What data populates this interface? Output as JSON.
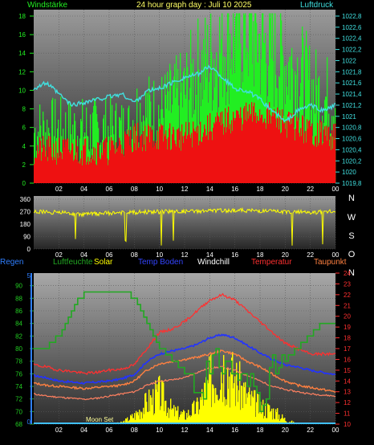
{
  "panel1": {
    "title": "24 hour graph day : Juli 10 2025",
    "left_label": "Windstärke",
    "right_label": "Luftdruck"
  },
  "panel3": {
    "legend": [
      "Regen",
      "Luftfeuchte",
      "Solar",
      "Temp Boden",
      "Windchill",
      "Temperatur",
      "Taupunkt"
    ],
    "moon_label": "Moon Set"
  },
  "colors": {
    "regen": "#2f7fff",
    "luftfeuchte": "#22a822",
    "solar": "#ffff00",
    "temp_boden": "#2233ff",
    "windchill": "#ffffff",
    "temperatur": "#ff3030",
    "taupunkt": "#ff8040",
    "luftdruck": "#40e0e0",
    "wind_gust": "#22ee22",
    "wind_avg": "#ee1111",
    "wind_dir": "#ffff00"
  },
  "chart_data": [
    {
      "type": "line",
      "title": "24 hour graph day : Juli 10 2025",
      "x_ticks": [
        "02",
        "04",
        "06",
        "08",
        "10",
        "12",
        "14",
        "16",
        "18",
        "20",
        "22",
        "00"
      ],
      "left_axis": {
        "label": "Windstärke",
        "ticks": [
          "0",
          "2",
          "4",
          "6",
          "8",
          "10",
          "12",
          "14",
          "16",
          "18"
        ],
        "range": [
          0,
          18
        ]
      },
      "right_axis": {
        "label": "Luftdruck",
        "ticks": [
          "1019,8",
          "1020",
          "1020,2",
          "1020,4",
          "1020,6",
          "1020,8",
          "1021",
          "1021,2",
          "1021,4",
          "1021,6",
          "1021,8",
          "1022",
          "1022,2",
          "1022,4",
          "1022,6",
          "1022,8"
        ],
        "range": [
          1019.8,
          1022.8
        ]
      },
      "series": [
        {
          "key": "gust",
          "hours": [
            0,
            2,
            4,
            6,
            7.5,
            8,
            10,
            11.5,
            12,
            12.5,
            13,
            14,
            15,
            16,
            17,
            18,
            19,
            20,
            21,
            22,
            23,
            24
          ],
          "values": [
            5.5,
            5.5,
            5.5,
            5.5,
            5.5,
            7.5,
            7.5,
            9,
            9.5,
            11,
            12,
            13,
            15,
            16,
            17,
            15,
            14,
            13,
            12,
            10,
            9,
            9
          ]
        },
        {
          "key": "avg",
          "hours": [
            0,
            2,
            4,
            6,
            8,
            10,
            12,
            13,
            14,
            16,
            18,
            20,
            22,
            24
          ],
          "values": [
            3.5,
            3.5,
            3.5,
            3.5,
            5,
            5,
            5,
            5.5,
            6,
            7,
            7.5,
            6.5,
            5.5,
            5
          ]
        },
        {
          "key": "pressure",
          "hours": [
            0,
            1,
            2,
            3,
            4,
            5,
            6,
            7,
            8,
            9,
            10,
            11,
            12,
            13,
            14,
            15,
            16,
            17,
            18,
            19,
            20,
            21,
            22,
            23,
            24
          ],
          "values": [
            1021.5,
            1021.6,
            1021.4,
            1021.2,
            1021.25,
            1021.3,
            1021.35,
            1021.4,
            1021.25,
            1021.45,
            1021.5,
            1021.6,
            1021.7,
            1021.75,
            1021.9,
            1021.7,
            1021.5,
            1021.45,
            1021.3,
            1021.1,
            1020.9,
            1021.1,
            1021.2,
            1021.1,
            1021.2
          ]
        }
      ]
    },
    {
      "type": "line",
      "x_ticks": [
        "02",
        "04",
        "06",
        "08",
        "10",
        "12",
        "14",
        "16",
        "18",
        "20",
        "22",
        "00"
      ],
      "left_axis": {
        "ticks": [
          "0",
          "90",
          "180",
          "270",
          "360"
        ],
        "range": [
          0,
          360
        ]
      },
      "right_labels": [
        "N",
        "W",
        "S",
        "O",
        "N"
      ],
      "series": [
        {
          "key": "direction",
          "hours": [
            0,
            2,
            4,
            6,
            8,
            10,
            12,
            14,
            16,
            18,
            20,
            22,
            24
          ],
          "values": [
            270,
            265,
            250,
            260,
            265,
            270,
            270,
            275,
            280,
            275,
            270,
            265,
            270
          ]
        }
      ]
    },
    {
      "type": "line",
      "x_ticks": [
        "02",
        "04",
        "06",
        "08",
        "10",
        "12",
        "14",
        "16",
        "18",
        "20",
        "22",
        "00"
      ],
      "left_axis": {
        "ticks": [
          "68",
          "70",
          "72",
          "74",
          "76",
          "78",
          "80",
          "82",
          "84",
          "86",
          "88",
          "90"
        ],
        "range": [
          68,
          92
        ]
      },
      "right_axis": {
        "ticks": [
          "10",
          "11",
          "12",
          "13",
          "14",
          "15",
          "16",
          "17",
          "18",
          "19",
          "20",
          "21",
          "22",
          "23",
          "24"
        ],
        "range": [
          10,
          24
        ]
      },
      "series": [
        {
          "key": "luftfeuchte",
          "axis": "left",
          "hours": [
            0,
            1,
            2,
            3,
            4,
            5,
            6,
            7,
            8,
            9,
            10,
            11,
            12,
            13,
            14,
            15,
            16,
            17,
            18,
            19,
            20,
            21,
            22,
            23,
            24
          ],
          "values": [
            80,
            80,
            82,
            86,
            89,
            89,
            89,
            89,
            88,
            84,
            80,
            78,
            76,
            74,
            76,
            78,
            76,
            74,
            73,
            76,
            78,
            80,
            82,
            84,
            84
          ]
        },
        {
          "key": "temperatur",
          "axis": "right",
          "hours": [
            0,
            1,
            2,
            3,
            4,
            5,
            6,
            7,
            8,
            9,
            10,
            11,
            12,
            13,
            14,
            15,
            16,
            17,
            18,
            19,
            20,
            21,
            22,
            23,
            24
          ],
          "values": [
            15.5,
            15.3,
            15,
            14.9,
            14.7,
            14.8,
            15,
            15.1,
            15.5,
            17,
            18.5,
            18.8,
            19.5,
            20.5,
            21.5,
            22,
            21.5,
            20.5,
            19.5,
            18.5,
            17.5,
            17,
            16.5,
            16.5,
            16.5
          ]
        },
        {
          "key": "temp_boden",
          "axis": "right",
          "hours": [
            0,
            1,
            2,
            3,
            4,
            5,
            6,
            7,
            8,
            9,
            10,
            11,
            12,
            13,
            14,
            15,
            16,
            17,
            18,
            19,
            20,
            21,
            22,
            23,
            24
          ],
          "values": [
            14.5,
            14.3,
            14,
            13.9,
            13.8,
            13.9,
            14,
            14.2,
            14.6,
            15.8,
            16.5,
            16.8,
            17,
            17.4,
            18,
            18.3,
            18,
            17.3,
            16.6,
            16,
            15.5,
            15.3,
            15,
            14.8,
            14.6
          ]
        },
        {
          "key": "taupunkt",
          "axis": "right",
          "hours": [
            0,
            1,
            2,
            3,
            4,
            5,
            6,
            7,
            8,
            9,
            10,
            11,
            12,
            13,
            14,
            15,
            16,
            17,
            18,
            19,
            20,
            21,
            22,
            23,
            24
          ],
          "values": [
            13.8,
            13.6,
            13.5,
            13.4,
            13.3,
            13.4,
            13.5,
            13.6,
            14,
            15,
            15.6,
            15.8,
            16,
            16.2,
            16.5,
            16.8,
            16.5,
            15.8,
            15.3,
            14.6,
            14,
            13.6,
            13.4,
            13.2,
            13
          ]
        },
        {
          "key": "windchill",
          "axis": "right",
          "hours": [
            0,
            1,
            2,
            3,
            4,
            5,
            6,
            7,
            8,
            9,
            10,
            11,
            12,
            13,
            14,
            15,
            16,
            17,
            18,
            19,
            20,
            21,
            22,
            23,
            24
          ],
          "values": [
            12.8,
            12.6,
            12.5,
            12.4,
            12.3,
            12.4,
            12.6,
            12.8,
            13,
            13.6,
            14,
            14.1,
            14.3,
            14.8,
            15.2,
            15.3,
            15,
            14.5,
            14,
            13.5,
            13.2,
            13,
            12.8,
            12.7,
            12.6
          ]
        },
        {
          "key": "solar",
          "axis": "right",
          "hours": [
            0,
            6,
            7,
            8,
            9,
            10,
            11,
            12,
            13,
            14,
            15,
            16,
            17,
            18,
            19,
            20,
            21,
            24
          ],
          "values": [
            10,
            10,
            10.2,
            11,
            12.5,
            13.5,
            11.5,
            11,
            12,
            15,
            17,
            15,
            13,
            12,
            11.5,
            10.5,
            10,
            10
          ]
        },
        {
          "key": "regen",
          "axis": "left",
          "hours": [
            0,
            24
          ],
          "values": [
            68,
            68
          ]
        }
      ]
    }
  ]
}
